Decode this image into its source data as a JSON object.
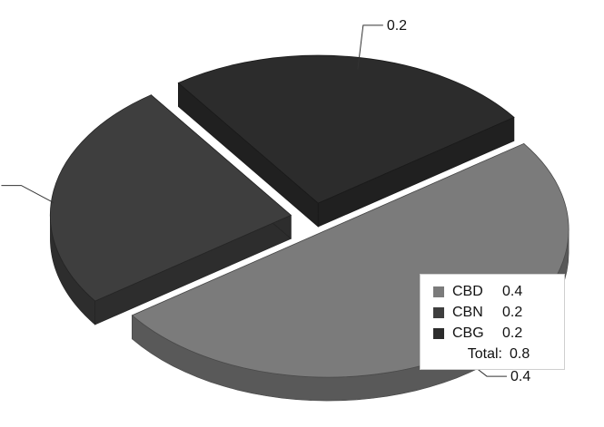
{
  "chart_data": {
    "type": "pie",
    "categories": [
      "CBD",
      "CBN",
      "CBG"
    ],
    "values": [
      0.4,
      0.2,
      0.2
    ],
    "colors": [
      "#7b7b7b",
      "#3e3e3e",
      "#2c2c2c"
    ],
    "data_labels": [
      "0.4",
      "0.2",
      "0.2"
    ],
    "legend": {
      "position": "bottom-right",
      "entries": [
        {
          "name": "CBD",
          "value": "0.4"
        },
        {
          "name": "CBN",
          "value": "0.2"
        },
        {
          "name": "CBG",
          "value": "0.2"
        }
      ],
      "total_label": "Total:",
      "total_value": "0.8"
    },
    "style": "3d-exploded"
  }
}
